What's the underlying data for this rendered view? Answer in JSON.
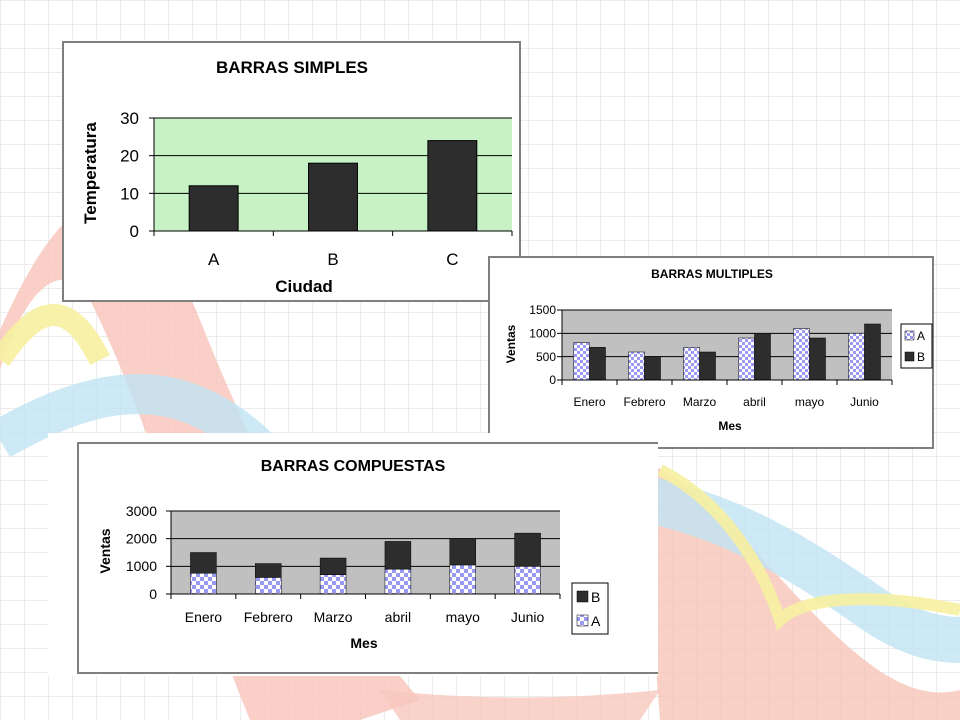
{
  "colors": {
    "simple_plot_bg": "#c6f2c6",
    "gray_plot_bg": "#c0c0c0",
    "bar_dark": "#2d2d2d",
    "bar_pattern_fill": "#9a9af2",
    "bar_pattern_bg": "#ffffff",
    "frame": "#7f7f7f"
  },
  "chart_data": [
    {
      "type": "bar",
      "title": "BARRAS SIMPLES",
      "xlabel": "Ciudad",
      "ylabel": "Temperatura",
      "categories": [
        "A",
        "B",
        "C"
      ],
      "values": [
        12,
        18,
        24
      ],
      "ylim": [
        0,
        30
      ],
      "yticks": [
        "0",
        "10",
        "20",
        "30"
      ],
      "grid": true
    },
    {
      "type": "bar",
      "title": "BARRAS MULTIPLES",
      "xlabel": "Mes",
      "ylabel": "Ventas",
      "categories": [
        "Enero",
        "Febrero",
        "Marzo",
        "abril",
        "mayo",
        "Junio"
      ],
      "series": [
        {
          "name": "A",
          "values": [
            800,
            600,
            700,
            900,
            1100,
            1000
          ]
        },
        {
          "name": "B",
          "values": [
            700,
            500,
            600,
            1000,
            900,
            1200
          ]
        }
      ],
      "ylim": [
        0,
        1500
      ],
      "yticks": [
        "0",
        "500",
        "1000",
        "1500"
      ],
      "legend": "right",
      "grid": true
    },
    {
      "type": "bar",
      "stacked": true,
      "title": "BARRAS COMPUESTAS",
      "xlabel": "Mes",
      "ylabel": "Ventas",
      "categories": [
        "Enero",
        "Febrero",
        "Marzo",
        "abril",
        "mayo",
        "Junio"
      ],
      "series": [
        {
          "name": "A",
          "values": [
            750,
            600,
            700,
            900,
            1050,
            1000
          ]
        },
        {
          "name": "B",
          "values": [
            750,
            500,
            600,
            1000,
            950,
            1200
          ]
        }
      ],
      "legend_order": [
        "B",
        "A"
      ],
      "ylim": [
        0,
        3000
      ],
      "yticks": [
        "0",
        "1000",
        "2000",
        "3000"
      ],
      "legend": "right",
      "grid": true
    }
  ]
}
